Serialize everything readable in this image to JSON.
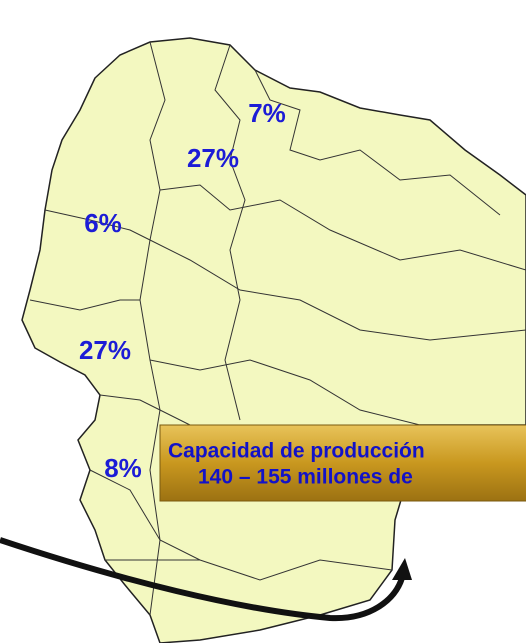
{
  "regions": [
    {
      "label": "7%"
    },
    {
      "label": "27%"
    },
    {
      "label": "6%"
    },
    {
      "label": "27%"
    },
    {
      "label": "8%"
    }
  ],
  "callout": {
    "line1": "Capacidad de producción",
    "line2": "140 – 155 millones de"
  }
}
